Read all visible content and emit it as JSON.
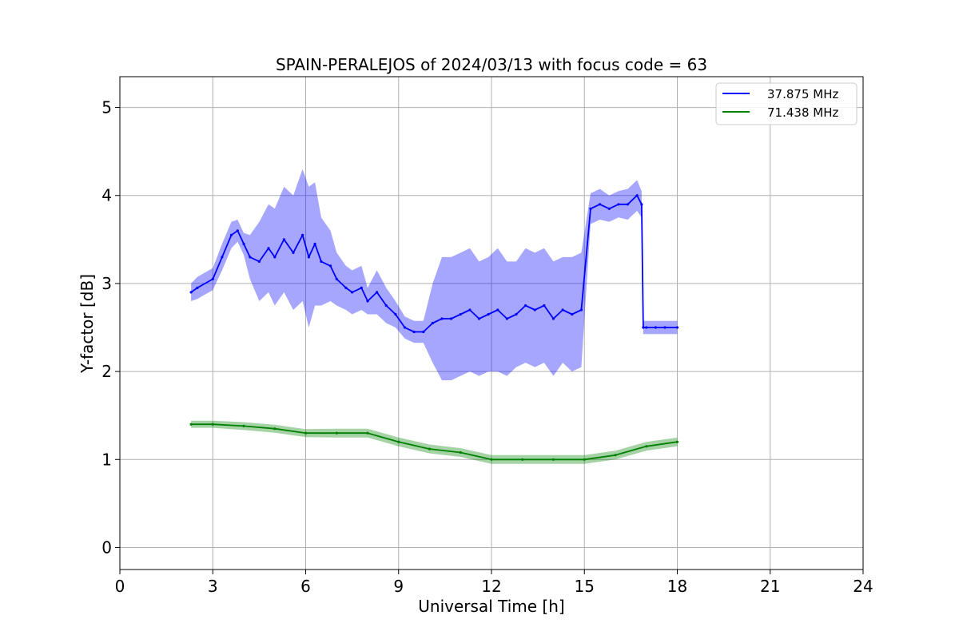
{
  "chart_data": {
    "type": "line",
    "title": "SPAIN-PERALEJOS of 2024/03/13 with focus code = 63",
    "xlabel": "Universal Time [h]",
    "ylabel": "Y-factor [dB]",
    "xlim": [
      0,
      24
    ],
    "ylim": [
      -0.25,
      5.35
    ],
    "xticks": [
      0,
      3,
      6,
      9,
      12,
      15,
      18,
      21,
      24
    ],
    "yticks": [
      0,
      1,
      2,
      3,
      4,
      5
    ],
    "grid": true,
    "legend_position": "top-right",
    "series": [
      {
        "name": "37.875 MHz",
        "color": "#0000ff",
        "x": [
          2.3,
          2.5,
          3.0,
          3.3,
          3.6,
          3.8,
          4.0,
          4.2,
          4.5,
          4.8,
          5.0,
          5.3,
          5.6,
          5.9,
          6.1,
          6.3,
          6.5,
          6.8,
          7.0,
          7.3,
          7.5,
          7.8,
          8.0,
          8.3,
          8.6,
          8.9,
          9.2,
          9.5,
          9.8,
          10.1,
          10.4,
          10.7,
          11.0,
          11.3,
          11.6,
          11.9,
          12.2,
          12.5,
          12.8,
          13.1,
          13.4,
          13.7,
          14.0,
          14.3,
          14.6,
          14.9,
          15.2,
          15.5,
          15.8,
          16.1,
          16.4,
          16.7,
          16.85,
          16.9,
          17.0,
          17.3,
          17.6,
          18.0
        ],
        "y": [
          2.9,
          2.95,
          3.05,
          3.3,
          3.55,
          3.6,
          3.45,
          3.3,
          3.25,
          3.4,
          3.3,
          3.5,
          3.35,
          3.55,
          3.3,
          3.45,
          3.25,
          3.2,
          3.05,
          2.95,
          2.9,
          2.95,
          2.8,
          2.9,
          2.75,
          2.65,
          2.5,
          2.45,
          2.45,
          2.55,
          2.6,
          2.6,
          2.65,
          2.7,
          2.6,
          2.65,
          2.7,
          2.6,
          2.65,
          2.75,
          2.7,
          2.75,
          2.6,
          2.7,
          2.65,
          2.7,
          3.85,
          3.9,
          3.85,
          3.9,
          3.9,
          4.0,
          3.9,
          2.5,
          2.5,
          2.5,
          2.5,
          2.5
        ],
        "variation": [
          0.2,
          0.25,
          0.25,
          0.3,
          0.3,
          0.25,
          0.25,
          0.5,
          0.9,
          1.0,
          1.1,
          1.2,
          1.3,
          1.5,
          1.6,
          1.4,
          1.0,
          0.8,
          0.6,
          0.5,
          0.5,
          0.5,
          0.3,
          0.5,
          0.4,
          0.3,
          0.25,
          0.25,
          0.25,
          0.9,
          1.4,
          1.4,
          1.4,
          1.4,
          1.3,
          1.3,
          1.4,
          1.3,
          1.2,
          1.3,
          1.3,
          1.3,
          1.3,
          1.2,
          1.3,
          1.3,
          0.35,
          0.35,
          0.3,
          0.3,
          0.35,
          0.35,
          0.3,
          0.15,
          0.15,
          0.15,
          0.15,
          0.15
        ]
      },
      {
        "name": "71.438 MHz",
        "color": "#008000",
        "x": [
          2.3,
          3.0,
          4.0,
          5.0,
          6.0,
          7.0,
          8.0,
          9.0,
          10.0,
          11.0,
          12.0,
          13.0,
          14.0,
          15.0,
          16.0,
          17.0,
          18.0
        ],
        "y": [
          1.4,
          1.4,
          1.38,
          1.35,
          1.3,
          1.3,
          1.3,
          1.2,
          1.12,
          1.08,
          1.0,
          1.0,
          1.0,
          1.0,
          1.05,
          1.15,
          1.2
        ],
        "variation": [
          0.08,
          0.08,
          0.09,
          0.09,
          0.09,
          0.1,
          0.1,
          0.1,
          0.1,
          0.1,
          0.1,
          0.1,
          0.1,
          0.1,
          0.1,
          0.1,
          0.1
        ]
      }
    ]
  }
}
